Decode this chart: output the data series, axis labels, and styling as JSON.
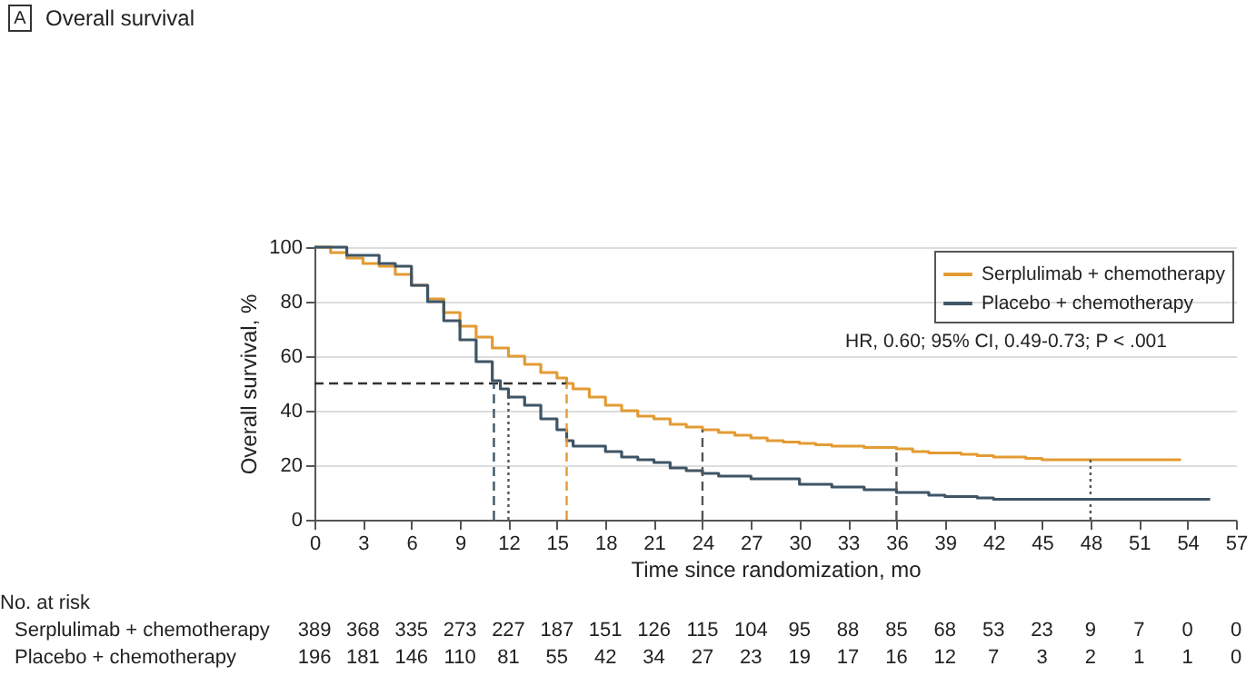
{
  "chart_data": {
    "type": "step",
    "title": "Overall survival",
    "xlabel": "Time since randomization, mo",
    "ylabel": "Overall survival, %",
    "annotations": [
      "A",
      "HR, 0.60; 95% CI, 0.49-0.73; P < .001",
      "No. at risk",
      "Serplulimab + chemotherapy",
      "389 368 335 273 227 187 151 126 115 104 95 88 85 68 53 23 9 7 0 0",
      "Placebo + chemotherapy",
      "196 181 146 110 81 55 42 34 27 23 19 17 16 12 7 3 2 1 1 0"
    ],
    "series": [
      {
        "name": "Serplulimab + chemotherapy",
        "color": "#e39b33",
        "x": [
          0,
          1,
          2,
          3,
          4,
          5,
          6,
          7,
          8,
          9,
          10,
          11,
          12,
          13,
          14,
          15,
          15.6,
          16,
          17,
          18,
          19,
          20,
          21,
          22,
          23,
          24,
          25,
          26,
          27,
          28,
          29,
          30,
          31,
          32,
          34,
          36,
          37,
          38,
          40,
          41,
          42,
          44,
          45,
          48,
          53.6
        ],
        "values": [
          100,
          98,
          96,
          94,
          93,
          90,
          86,
          81,
          76,
          71,
          67,
          63,
          60,
          57,
          54,
          52,
          50,
          48,
          45,
          42,
          40,
          38,
          37,
          35,
          34,
          33,
          32,
          31,
          30,
          29,
          28.5,
          28,
          27.5,
          27,
          26.5,
          26,
          25,
          24.5,
          24,
          23.5,
          23,
          22.5,
          22,
          22,
          22
        ]
      },
      {
        "name": "Placebo + chemotherapy",
        "color": "#3e5566",
        "x": [
          0,
          2,
          4,
          5,
          6,
          7,
          8,
          9,
          10,
          11,
          11.5,
          12,
          13,
          14,
          15,
          15.6,
          16,
          17,
          18,
          19,
          20,
          21,
          22,
          23,
          24,
          25,
          27,
          30,
          32,
          34,
          36,
          37,
          38,
          39,
          41,
          42,
          48,
          55.4
        ],
        "values": [
          100,
          97,
          94,
          93,
          86,
          80,
          73,
          66,
          58,
          51,
          48,
          45,
          42,
          37,
          33,
          29,
          27,
          27,
          25,
          23,
          22,
          21,
          19,
          18,
          17,
          16,
          15,
          13,
          12,
          11,
          10,
          10,
          9,
          8.5,
          8,
          7.5,
          7.5,
          7.5
        ]
      },
      {
        "type": "line",
        "color": "#333333",
        "line_style": "dashed",
        "x": [
          0,
          15.6
        ],
        "values": [
          50,
          50
        ]
      },
      {
        "type": "line",
        "color": "#3e5566",
        "line_style": "dashed",
        "x": [
          11.1,
          11.1
        ],
        "values": [
          0,
          50
        ]
      },
      {
        "type": "line",
        "color": "#555555",
        "line_style": "dotted",
        "x": [
          12,
          12
        ],
        "values": [
          0,
          45
        ]
      },
      {
        "type": "line",
        "color": "#e39b33",
        "line_style": "dashed",
        "x": [
          15.6,
          15.6
        ],
        "values": [
          0,
          50
        ]
      },
      {
        "type": "line",
        "color": "#555555",
        "line_style": "dashed",
        "x": [
          24,
          24
        ],
        "values": [
          0,
          33
        ]
      },
      {
        "type": "line",
        "color": "#555555",
        "line_style": "dashed",
        "x": [
          36,
          36
        ],
        "values": [
          0,
          26
        ]
      },
      {
        "type": "line",
        "color": "#555555",
        "line_style": "dotted",
        "x": [
          48,
          48
        ],
        "values": [
          0,
          22
        ]
      }
    ],
    "xlim": [
      0,
      57
    ],
    "xticks": [
      0,
      3,
      6,
      9,
      12,
      15,
      18,
      21,
      24,
      27,
      30,
      33,
      36,
      39,
      42,
      45,
      48,
      51,
      54,
      57
    ],
    "ylim": [
      0,
      100
    ],
    "yticks": [
      0,
      20,
      40,
      60,
      80,
      100
    ],
    "grid": "y",
    "legend": "top right"
  }
}
